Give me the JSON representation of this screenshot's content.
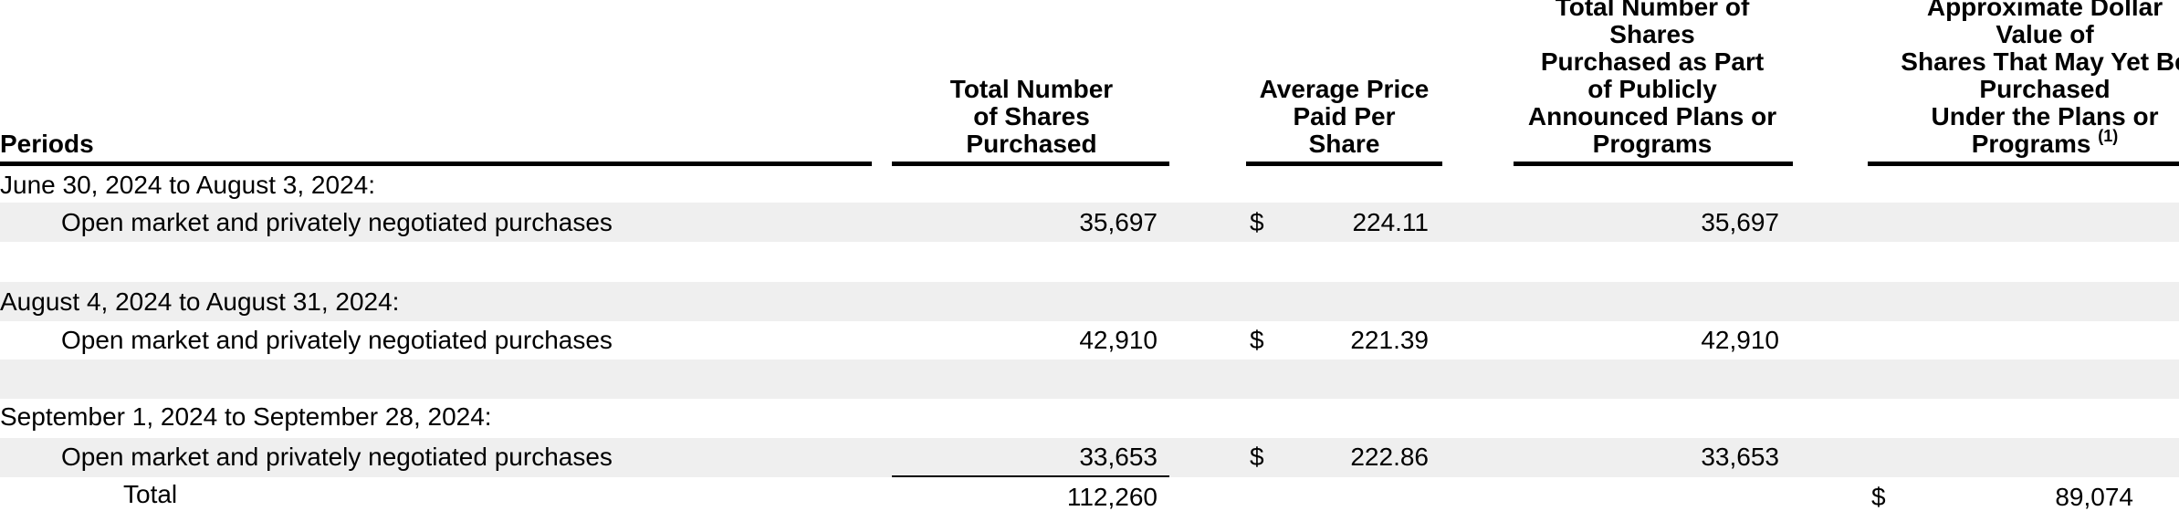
{
  "headers": {
    "periods": "Periods",
    "total_shares": "Total Number\nof Shares\nPurchased",
    "avg_price": "Average Price\nPaid Per\nShare",
    "plan_shares": "Total Number of\nShares\nPurchased as Part\nof Publicly\nAnnounced Plans or\nPrograms",
    "approx_value": "Approximate Dollar\nValue of\nShares That May Yet Be\nPurchased\nUnder the Plans or\nPrograms",
    "approx_value_note": "(1)"
  },
  "rows": [
    {
      "period": "June 30, 2024 to August 3, 2024:",
      "detail": "Open market and privately negotiated purchases",
      "total_shares": "35,697",
      "currency": "$",
      "avg_price": "224.11",
      "plan_shares": "35,697"
    },
    {
      "period": "August 4, 2024 to August 31, 2024:",
      "detail": "Open market and privately negotiated purchases",
      "total_shares": "42,910",
      "currency": "$",
      "avg_price": "221.39",
      "plan_shares": "42,910"
    },
    {
      "period": "September 1, 2024 to September 28, 2024:",
      "detail": "Open market and privately negotiated purchases",
      "total_shares": "33,653",
      "currency": "$",
      "avg_price": "222.86",
      "plan_shares": "33,653"
    }
  ],
  "total": {
    "label": "Total",
    "total_shares": "112,260",
    "currency": "$",
    "approx_value": "89,074"
  }
}
